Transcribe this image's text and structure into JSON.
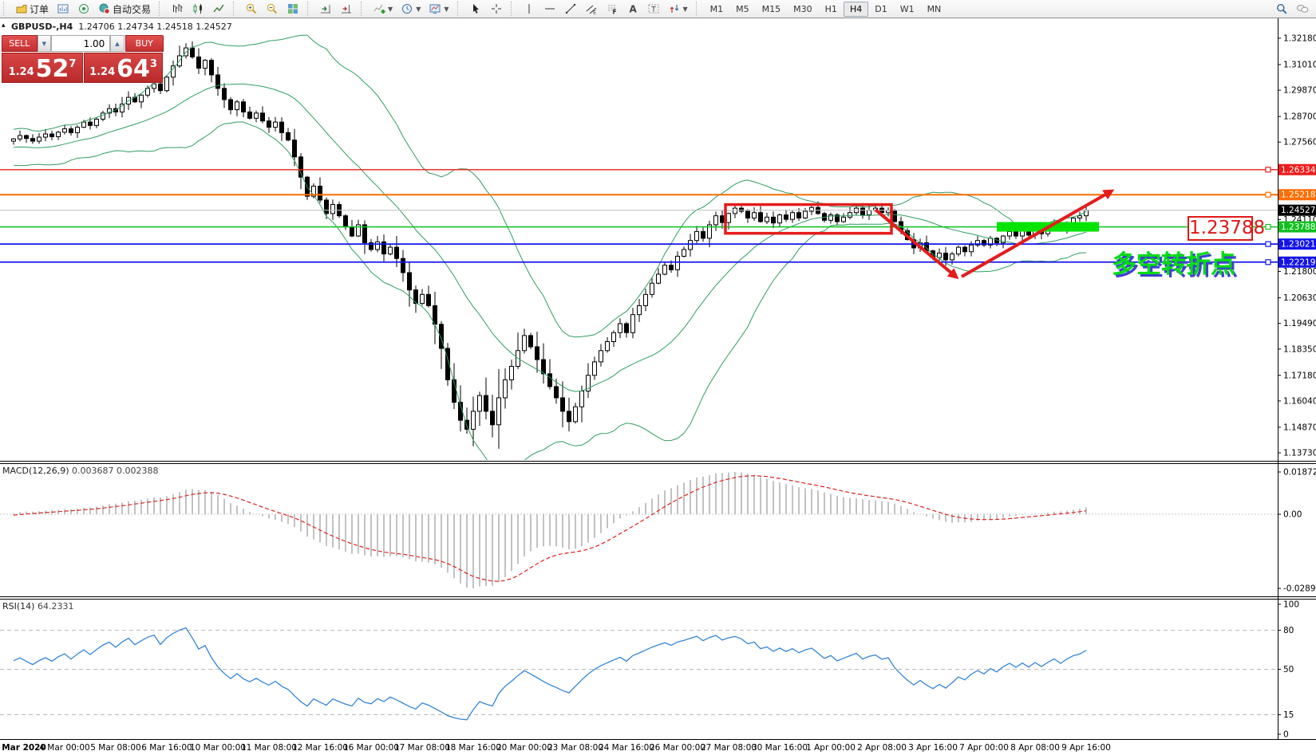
{
  "toolbar": {
    "groups": [
      [
        {
          "icon": "new-order-icon",
          "label": "订单"
        },
        {
          "icon": "market-watch-icon"
        },
        {
          "icon": "signals-icon"
        },
        {
          "icon": "autotrading-icon",
          "label": "自动交易"
        }
      ],
      [
        {
          "icon": "bar-chart-icon"
        },
        {
          "icon": "candlestick-icon"
        },
        {
          "icon": "line-chart-icon"
        }
      ],
      [
        {
          "icon": "zoom-in-icon"
        },
        {
          "icon": "zoom-out-icon"
        },
        {
          "icon": "tile-windows-icon"
        }
      ],
      [
        {
          "icon": "auto-scroll-icon"
        },
        {
          "icon": "chart-shift-icon"
        }
      ],
      [
        {
          "icon": "new-indicator-icon",
          "dd": true
        },
        {
          "icon": "periods-icon",
          "dd": true
        },
        {
          "icon": "templates-icon",
          "dd": true
        }
      ],
      [
        {
          "icon": "cursor-icon"
        },
        {
          "icon": "crosshair-icon"
        }
      ],
      [
        {
          "icon": "vline-icon"
        },
        {
          "icon": "hline-icon"
        },
        {
          "icon": "trendline-icon"
        },
        {
          "icon": "channel-icon"
        },
        {
          "icon": "fibonacci-icon"
        },
        {
          "icon": "text-icon"
        },
        {
          "icon": "text-label-icon"
        },
        {
          "icon": "arrows-icon",
          "dd": true
        }
      ]
    ],
    "timeframes": [
      {
        "label": "M1"
      },
      {
        "label": "M5"
      },
      {
        "label": "M15"
      },
      {
        "label": "M30"
      },
      {
        "label": "H1"
      },
      {
        "label": "H4",
        "active": true
      },
      {
        "label": "D1"
      },
      {
        "label": "W1"
      },
      {
        "label": "MN"
      }
    ],
    "right_icons": [
      {
        "icon": "search-icon"
      },
      {
        "icon": "chat-icon"
      }
    ]
  },
  "quote_panel": {
    "sell_label": "SELL",
    "buy_label": "BUY",
    "volume": "1.00",
    "bid_small": "1.24",
    "bid_big": "52",
    "bid_sup": "7",
    "ask_small": "1.24",
    "ask_big": "64",
    "ask_sup": "3"
  },
  "chart": {
    "title": "GBPUSD-,H4",
    "open": "1.24706",
    "high": "1.24734",
    "low": "1.24518",
    "close": "1.24527",
    "collapse_arrow": "▴"
  },
  "indicators": {
    "macd_name": "MACD(12,26,9)",
    "macd_value1": "0.003687",
    "macd_value2": "0.002388",
    "rsi_name": "RSI(14)",
    "rsi_value": "64.2331"
  },
  "chart_data": {
    "type": "candlestick",
    "symbol": "GBPUSD-",
    "timeframe": "H4",
    "pre_history": [
      1.2738,
      1.2755,
      1.2782,
      1.2808,
      1.279,
      1.2752,
      1.2724,
      1.27,
      1.2682,
      1.2662,
      1.2684,
      1.2712,
      1.2734,
      1.2705,
      1.2682,
      1.2702,
      1.2728,
      1.2752,
      1.2772,
      1.276
    ],
    "closes": [
      1.277,
      1.2785,
      1.2772,
      1.276,
      1.2778,
      1.2792,
      1.278,
      1.28,
      1.2815,
      1.2798,
      1.2822,
      1.2845,
      1.283,
      1.2858,
      1.2885,
      1.2905,
      1.289,
      1.2925,
      1.2955,
      1.2935,
      1.2965,
      1.2995,
      1.3015,
      1.2985,
      1.3045,
      1.3095,
      1.314,
      1.3175,
      1.3135,
      1.3085,
      1.312,
      1.3055,
      1.2995,
      1.2945,
      1.29,
      1.2935,
      1.289,
      1.2862,
      1.2885,
      1.285,
      1.2822,
      1.2845,
      1.2798,
      1.2765,
      1.269,
      1.26,
      1.2515,
      1.256,
      1.2498,
      1.2438,
      1.2478,
      1.2428,
      1.2378,
      1.2338,
      1.2388,
      1.2308,
      1.2278,
      1.2312,
      1.2258,
      1.2288,
      1.2238,
      1.2175,
      1.2098,
      1.2038,
      1.2078,
      1.2028,
      1.1945,
      1.1838,
      1.1698,
      1.1598,
      1.1518,
      1.1478,
      1.1558,
      1.1628,
      1.1558,
      1.1498,
      1.1618,
      1.1698,
      1.1758,
      1.1828,
      1.1895,
      1.1845,
      1.1788,
      1.1725,
      1.1668,
      1.1618,
      1.1558,
      1.1512,
      1.1578,
      1.1648,
      1.1718,
      1.1778,
      1.1828,
      1.1868,
      1.1908,
      1.1948,
      1.1908,
      1.1988,
      1.2028,
      1.2078,
      1.2128,
      1.2168,
      1.2208,
      1.2188,
      1.2248,
      1.2278,
      1.2318,
      1.2358,
      1.2328,
      1.2388,
      1.2428,
      1.2398,
      1.2438,
      1.2462,
      1.2448,
      1.2418,
      1.2442,
      1.2402,
      1.2422,
      1.2396,
      1.2432,
      1.2412,
      1.2442,
      1.2418,
      1.2448,
      1.2465,
      1.2438,
      1.2408,
      1.2432,
      1.2402,
      1.2422,
      1.2442,
      1.2462,
      1.2432,
      1.2452,
      1.2462,
      1.2442,
      1.2452,
      1.2402,
      1.2362,
      1.2322,
      1.2285,
      1.2308,
      1.2272,
      1.2242,
      1.2262,
      1.2232,
      1.2258,
      1.2288,
      1.2268,
      1.2298,
      1.2318,
      1.2298,
      1.2328,
      1.2308,
      1.2338,
      1.2358,
      1.2338,
      1.2362,
      1.2342,
      1.2368,
      1.2348,
      1.2372,
      1.2392,
      1.2372,
      1.2398,
      1.2418,
      1.2428,
      1.24527
    ],
    "wick_overrides": {
      "26": {
        "hi": 1.3185
      },
      "27": {
        "hi": 1.3196
      },
      "70": {
        "lo": 1.1468
      },
      "71": {
        "lo": 1.1458
      },
      "146": {
        "lo": 1.2206
      }
    },
    "indicators": {
      "bollinger": {
        "period": 20,
        "deviation": 2,
        "color": "#2f9e60"
      },
      "macd": {
        "fast": 12,
        "slow": 26,
        "signal": 9,
        "histogram_color": "#c2c2c2",
        "signal_color": "#e02020"
      },
      "rsi": {
        "period": 14,
        "color": "#3585d6",
        "levels": [
          80,
          50,
          15
        ]
      }
    },
    "price_axis_ticks": [
      "1.32180",
      "1.31010",
      "1.29870",
      "1.28700",
      "1.27560",
      "1.24110",
      "1.21800",
      "1.20630",
      "1.19490",
      "1.18350",
      "1.17180",
      "1.16040",
      "1.14870",
      "1.13730"
    ],
    "macd_axis_ticks": [
      "0.018721",
      "0.00",
      "-0.028913"
    ],
    "rsi_axis_ticks": [
      "100",
      "80",
      "50",
      "15",
      "0"
    ],
    "time_axis": [
      "Mar 2020",
      "4 Mar 00:00",
      "5 Mar 08:00",
      "6 Mar 16:00",
      "10 Mar 00:00",
      "11 Mar 08:00",
      "12 Mar 16:00",
      "16 Mar 00:00",
      "17 Mar 08:00",
      "18 Mar 16:00",
      "20 Mar 00:00",
      "23 Mar 08:00",
      "24 Mar 16:00",
      "26 Mar 00:00",
      "27 Mar 08:00",
      "30 Mar 16:00",
      "1 Apr 00:00",
      "2 Apr 08:00",
      "3 Apr 16:00",
      "7 Apr 00:00",
      "8 Apr 08:00",
      "9 Apr 16:00"
    ],
    "hlines": [
      {
        "price": 1.26334,
        "color": "#ee1c1c",
        "label": "1.26334",
        "width": 1.4,
        "handle": true
      },
      {
        "price": 1.25218,
        "color": "#ff6d00",
        "label": "1.25218",
        "width": 2,
        "handle": true
      },
      {
        "price": 1.24527,
        "color": "#c4c4c4",
        "label": "1.24527",
        "width": 1.2,
        "handle": false,
        "label_bg": "#000000"
      },
      {
        "price": 1.23788,
        "color": "#17c427",
        "label": "1.23788",
        "width": 1.6,
        "handle": true,
        "label_bg": "#10c020"
      },
      {
        "price": 1.23021,
        "color": "#1414e8",
        "label": "1.23021",
        "width": 1.8,
        "handle": true
      },
      {
        "price": 1.22219,
        "color": "#1414e8",
        "label": "1.22219",
        "width": 1.8,
        "handle": true
      }
    ],
    "annotations": {
      "rect": {
        "bar_start": 112,
        "bar_end": 137,
        "price_top": 1.2478,
        "price_bottom": 1.235,
        "color": "#e41c1c"
      },
      "down_arrow": {
        "bar_start": 135,
        "price_start": 1.2455,
        "bar_end": 147.6,
        "price_end": 1.2157,
        "color": "#e41c1c"
      },
      "up_arrow": {
        "bar_start": 148.5,
        "price_start": 1.2157,
        "bar_end": 171.9,
        "price_end": 1.2537,
        "color": "#e41c1c"
      },
      "highlight_band": {
        "bar_start": 154,
        "bar_end": 170,
        "price": 1.23788,
        "thickness": 12,
        "color": "#00e400"
      },
      "price_callout": "1.23788",
      "note_text": "多空转折点"
    }
  }
}
